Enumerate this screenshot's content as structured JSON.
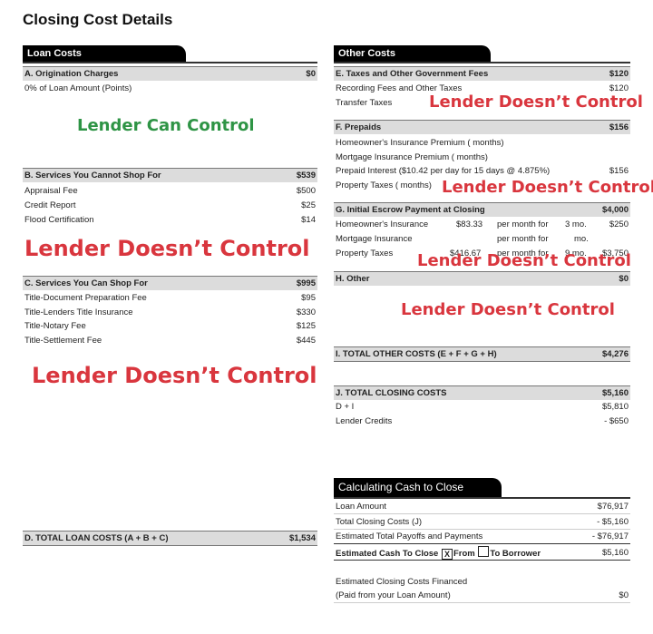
{
  "title": "Closing Cost Details",
  "loan_costs": {
    "tab": "Loan Costs",
    "A": {
      "label": "A. Origination Charges",
      "value": "$0",
      "items": [
        {
          "label": "0% of Loan Amount (Points)",
          "value": ""
        }
      ]
    },
    "B": {
      "label": "B. Services You Cannot Shop For",
      "value": "$539",
      "items": [
        {
          "label": "Appraisal Fee",
          "value": "$500"
        },
        {
          "label": "Credit Report",
          "value": "$25"
        },
        {
          "label": "Flood Certification",
          "value": "$14"
        }
      ]
    },
    "C": {
      "label": "C. Services You Can Shop For",
      "value": "$995",
      "items": [
        {
          "label": "Title-Document Preparation Fee",
          "value": "$95"
        },
        {
          "label": "Title-Lenders Title Insurance",
          "value": "$330"
        },
        {
          "label": "Title-Notary Fee",
          "value": "$125"
        },
        {
          "label": "Title-Settlement Fee",
          "value": "$445"
        }
      ]
    },
    "D": {
      "label": "D. TOTAL LOAN COSTS (A + B + C)",
      "value": "$1,534"
    }
  },
  "other_costs": {
    "tab": "Other Costs",
    "E": {
      "label": "E. Taxes and Other Government Fees",
      "value": "$120",
      "items": [
        {
          "label": "Recording Fees and Other Taxes",
          "value": "$120"
        },
        {
          "label": "Transfer Taxes",
          "value": ""
        }
      ]
    },
    "F": {
      "label": "F. Prepaids",
      "value": "$156",
      "items": [
        {
          "label": "Homeowner's Insurance Premium ( months)",
          "value": ""
        },
        {
          "label": "Mortgage Insurance Premium ( months)",
          "value": ""
        },
        {
          "label": "Prepaid Interest ($10.42 per day for 15 days @ 4.875%)",
          "value": "$156"
        },
        {
          "label": "Property Taxes ( months)",
          "value": ""
        }
      ]
    },
    "G": {
      "label": "G. Initial Escrow Payment at Closing",
      "value": "$4,000",
      "items": [
        {
          "label": "Homeowner's Insurance",
          "monthly": "$83.33",
          "per": "per month for",
          "months": "3 mo.",
          "value": "$250"
        },
        {
          "label": "Mortgage Insurance",
          "monthly": "",
          "per": "per month for",
          "months": "mo.",
          "value": ""
        },
        {
          "label": "Property Taxes",
          "monthly": "$416.67",
          "per": "per month for",
          "months": "9 mo.",
          "value": "$3,750"
        }
      ]
    },
    "H": {
      "label": "H. Other",
      "value": "$0"
    },
    "I": {
      "label": "I. TOTAL OTHER COSTS (E + F + G + H)",
      "value": "$4,276"
    },
    "J": {
      "label": "J. TOTAL CLOSING COSTS",
      "value": "$5,160",
      "items": [
        {
          "label": "D + I",
          "value": "$5,810"
        },
        {
          "label": "Lender Credits",
          "value": "- $650"
        }
      ]
    }
  },
  "cash_to_close": {
    "tab": "Calculating Cash to Close",
    "items": [
      {
        "label": "Loan Amount",
        "value": "$76,917"
      },
      {
        "label": "Total Closing Costs (J)",
        "value": "- $5,160"
      },
      {
        "label": "Estimated Total Payoffs and Payments",
        "value": "- $76,917"
      }
    ],
    "total": {
      "label": "Estimated Cash To Close",
      "from_label": "From",
      "from_checked": "X",
      "to_label": "To Borrower",
      "value": "$5,160"
    },
    "financed": {
      "line1": "Estimated Closing Costs Financed",
      "line2": "(Paid from your Loan Amount)",
      "value": "$0"
    }
  },
  "annotations": {
    "can_control": "Lender Can Control",
    "doesnt_control": "Lender Doesn’t Control"
  },
  "colors": {
    "red": "#d9363e",
    "green": "#2e9445"
  }
}
